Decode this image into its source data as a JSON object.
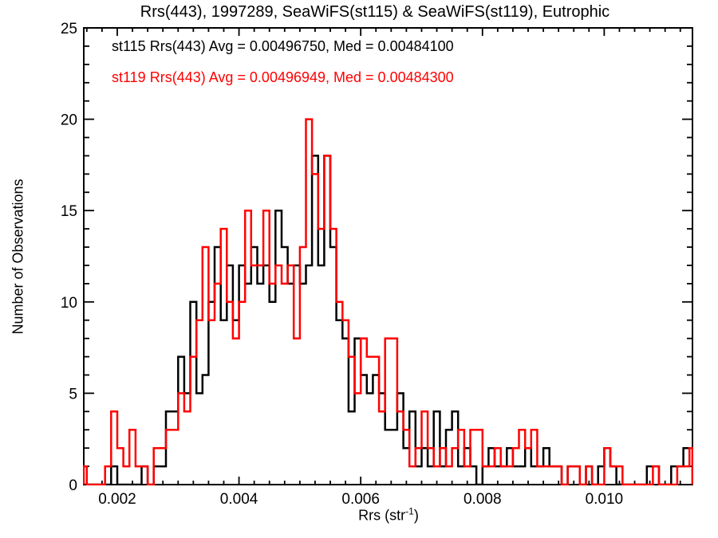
{
  "labels": {
    "xlabel_pre": "Rrs (str",
    "xlabel_sup": "-1",
    "xlabel_post": ")"
  },
  "chart_data": {
    "type": "step-histogram",
    "title": "Rrs(443), 1997289, SeaWiFS(st115) & SeaWiFS(st119), Eutrophic",
    "xlabel": "Rrs (str^-1)",
    "ylabel": "Number of Observations",
    "background": "#ffffff",
    "axis_color": "#000000",
    "xlim": [
      0.00145,
      0.01145
    ],
    "ylim": [
      0,
      25
    ],
    "x_major_ticks": [
      0.002,
      0.004,
      0.006,
      0.008,
      0.01
    ],
    "x_tick_labels": [
      "0.002",
      "0.004",
      "0.006",
      "0.008",
      "0.010"
    ],
    "x_minor_step": 0.00025,
    "y_major_ticks": [
      0,
      5,
      10,
      15,
      20,
      25
    ],
    "y_tick_labels": [
      "0",
      "5",
      "10",
      "15",
      "20",
      "25"
    ],
    "y_minor_step": 1,
    "legend_position": "top-left-inside",
    "grid": false,
    "bin_start": 0.0014,
    "bin_width": 0.0001,
    "series": [
      {
        "name": "st115",
        "color": "#000000",
        "legend": "st115 Rrs(443) Avg = 0.00496750, Med = 0.00484100",
        "avg": "0.00496750",
        "med": "0.00484100",
        "counts": [
          0,
          0,
          0,
          0,
          0,
          1,
          0,
          0,
          0,
          0,
          1,
          0,
          1,
          1,
          4,
          4,
          7,
          5,
          10,
          5,
          6,
          10,
          13,
          9,
          12,
          9,
          12,
          11,
          13,
          11,
          12,
          10,
          15,
          13,
          11,
          12,
          11,
          12,
          18,
          12,
          18,
          13,
          9,
          8,
          4,
          8,
          6,
          5,
          6,
          5,
          3,
          3,
          5,
          2,
          4,
          1,
          2,
          1,
          4,
          1,
          3,
          4,
          1,
          2,
          1,
          0,
          1,
          2,
          1,
          1,
          2,
          1,
          1,
          2,
          1,
          1,
          2,
          1,
          1,
          0,
          1,
          1,
          0,
          1,
          0,
          1,
          2,
          1,
          0,
          0,
          0,
          0,
          0,
          1,
          1,
          0,
          0,
          1,
          1,
          2,
          2
        ]
      },
      {
        "name": "st119",
        "color": "#ff0000",
        "legend": "st119 Rrs(443) Avg = 0.00496949, Med = 0.00484300",
        "avg": "0.00496949",
        "med": "0.00484300",
        "counts": [
          1,
          0,
          0,
          0,
          1,
          4,
          2,
          1,
          3,
          1,
          1,
          0,
          2,
          2,
          3,
          3,
          5,
          4,
          7,
          9,
          13,
          9,
          11,
          14,
          10,
          8,
          10,
          15,
          12,
          12,
          15,
          11,
          12,
          11,
          12,
          8,
          13,
          20,
          17,
          14,
          18,
          14,
          10,
          9,
          7,
          5,
          8,
          7,
          7,
          4,
          8,
          8,
          4,
          3,
          1,
          2,
          4,
          2,
          1,
          2,
          1,
          2,
          3,
          1,
          3,
          3,
          1,
          1,
          2,
          1,
          1,
          2,
          3,
          2,
          3,
          1,
          1,
          1,
          1,
          0,
          1,
          1,
          0,
          1,
          0,
          0,
          2,
          1,
          1,
          0,
          0,
          0,
          0,
          0,
          1,
          0,
          0,
          0,
          1,
          1,
          2
        ]
      }
    ]
  }
}
